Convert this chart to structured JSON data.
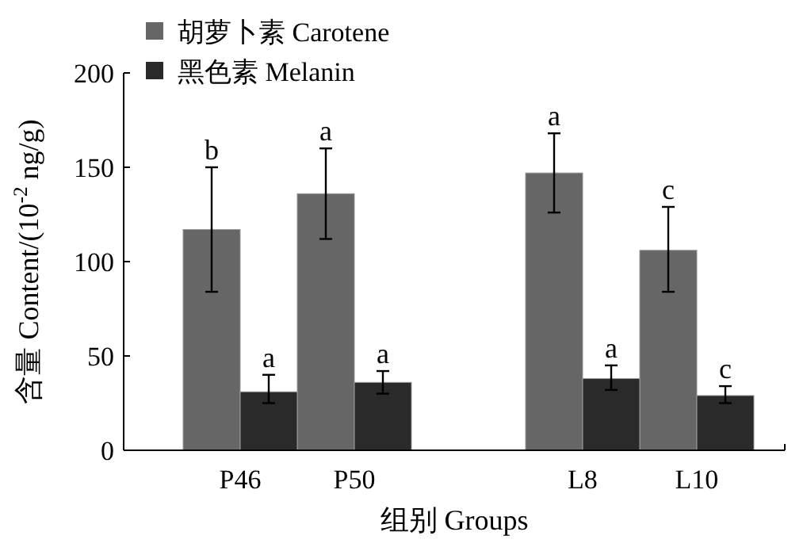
{
  "chart_data": {
    "type": "bar",
    "xlabel": "组别 Groups",
    "ylabel": "含量 Content/(10$^{-2}$ ng/g)",
    "categories": [
      "P46",
      "P50",
      null,
      "L8",
      "L10"
    ],
    "series": [
      {
        "name": "胡萝卜素 Carotene",
        "color": "#666666",
        "values": [
          117,
          136,
          null,
          147,
          106
        ],
        "errors": [
          [
            84,
            150
          ],
          [
            112,
            160
          ],
          null,
          [
            126,
            168
          ],
          [
            84,
            129
          ]
        ]
      },
      {
        "name": "黑色素 Melanin",
        "color": "#2a2a2a",
        "values": [
          31,
          36,
          null,
          38,
          29
        ],
        "errors": [
          [
            25,
            40
          ],
          [
            30,
            42
          ],
          null,
          [
            32,
            45
          ],
          [
            25,
            34
          ]
        ]
      }
    ],
    "ylim": [
      0,
      200
    ],
    "yticks": [
      0,
      50,
      100,
      150,
      200
    ],
    "grid": false,
    "legend": "top left",
    "annotations": [
      "b",
      "a",
      "a",
      "c",
      {
        "text": "a",
        "x": "P46",
        "y": 40
      },
      {
        "text": "a",
        "x": "P50",
        "y": 42
      },
      {
        "text": "a",
        "x": "L8",
        "y": 45
      },
      {
        "text": "c",
        "x": "L10",
        "y": 34
      }
    ]
  }
}
